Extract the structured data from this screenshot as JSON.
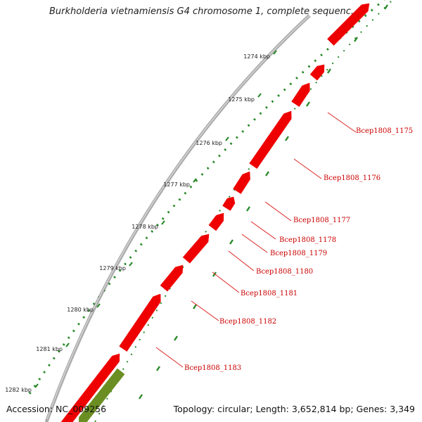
{
  "header": {
    "title": "Burkholderia vietnamiensis G4 chromosome 1, complete sequenc..."
  },
  "footer": {
    "accession": "Accession: NC_009256",
    "summary": "Topology: circular; Length: 3,652,814 bp; Genes: 3,349"
  },
  "colors": {
    "gene_forward": "#ee0000",
    "gene_reverse": "#6b8e23",
    "ruler_tick": "#2a8a2a",
    "backbone": "#8a8a8a",
    "label": "#cc0000"
  },
  "ruler": {
    "ticks": [
      {
        "kbp": 1274,
        "label": "1274 kbp"
      },
      {
        "kbp": 1275,
        "label": "1275 kbp"
      },
      {
        "kbp": 1276,
        "label": "1276 kbp"
      },
      {
        "kbp": 1277,
        "label": "1277 kbp"
      },
      {
        "kbp": 1278,
        "label": "1278 kbp"
      },
      {
        "kbp": 1279,
        "label": "1279 kbp"
      },
      {
        "kbp": 1280,
        "label": "1280 kbp"
      },
      {
        "kbp": 1281,
        "label": "1281 kbp"
      },
      {
        "kbp": 1282,
        "label": "1282 kbp"
      }
    ]
  },
  "genes": [
    {
      "label": "Bcep1808_1175",
      "strand": "+"
    },
    {
      "label": "Bcep1808_1176",
      "strand": "+"
    },
    {
      "label": "Bcep1808_1177",
      "strand": "+"
    },
    {
      "label": "Bcep1808_1178",
      "strand": "+"
    },
    {
      "label": "Bcep1808_1179",
      "strand": "+"
    },
    {
      "label": "Bcep1808_1180",
      "strand": "+"
    },
    {
      "label": "Bcep1808_1181",
      "strand": "+"
    },
    {
      "label": "Bcep1808_1182",
      "strand": "+"
    },
    {
      "label": "Bcep1808_1183",
      "strand": "+"
    }
  ]
}
